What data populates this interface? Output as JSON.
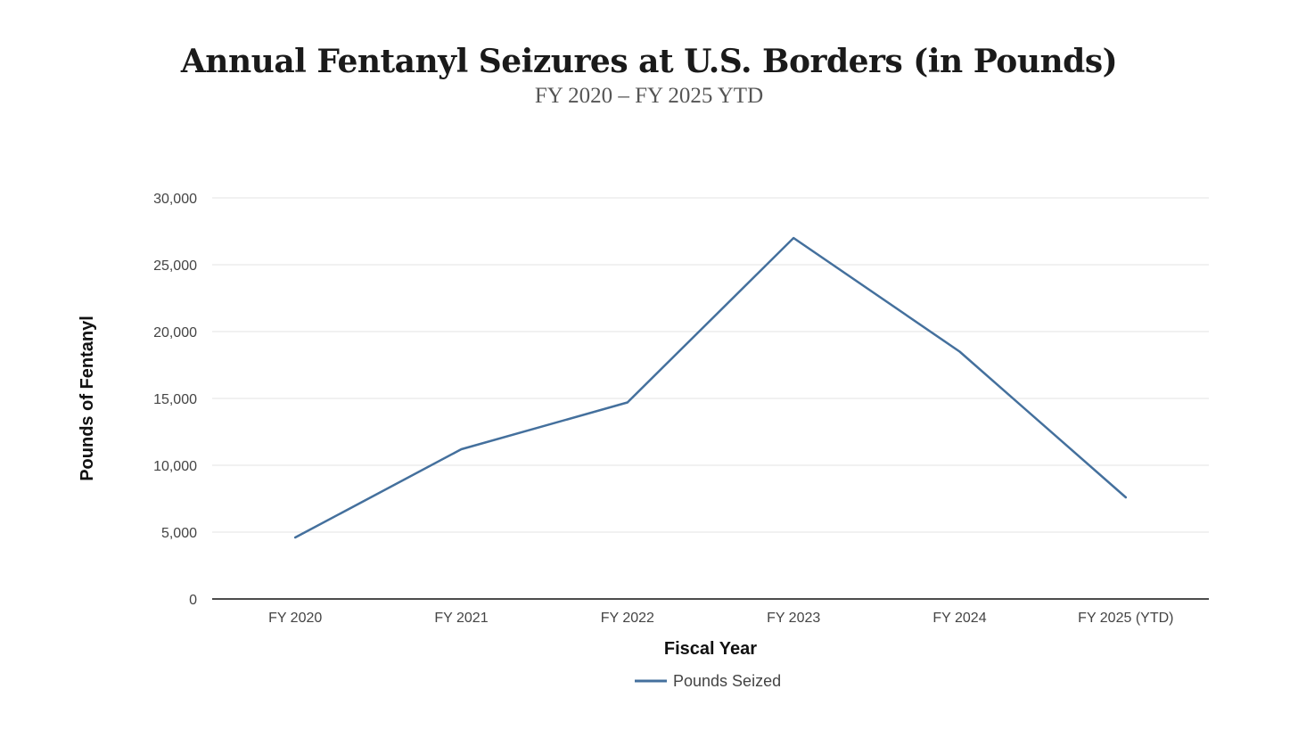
{
  "chart_data": {
    "type": "line",
    "title": "Annual Fentanyl Seizures at U.S. Borders (in Pounds)",
    "subtitle": "FY 2020 – FY 2025 YTD",
    "xlabel": "Fiscal Year",
    "ylabel": "Pounds of Fentanyl",
    "categories": [
      "FY 2020",
      "FY 2021",
      "FY 2022",
      "FY 2023",
      "FY 2024",
      "FY 2025 (YTD)"
    ],
    "series": [
      {
        "name": "Pounds Seized",
        "color": "#44709d",
        "values": [
          4600,
          11200,
          14700,
          27000,
          18500,
          7600
        ]
      }
    ],
    "ylim": [
      0,
      30000
    ],
    "yticks": [
      0,
      5000,
      10000,
      15000,
      20000,
      25000,
      30000
    ],
    "ytick_labels": [
      "0",
      "5,000",
      "10,000",
      "15,000",
      "20,000",
      "25,000",
      "30,000"
    ],
    "grid": true,
    "legend_position": "bottom-center"
  }
}
